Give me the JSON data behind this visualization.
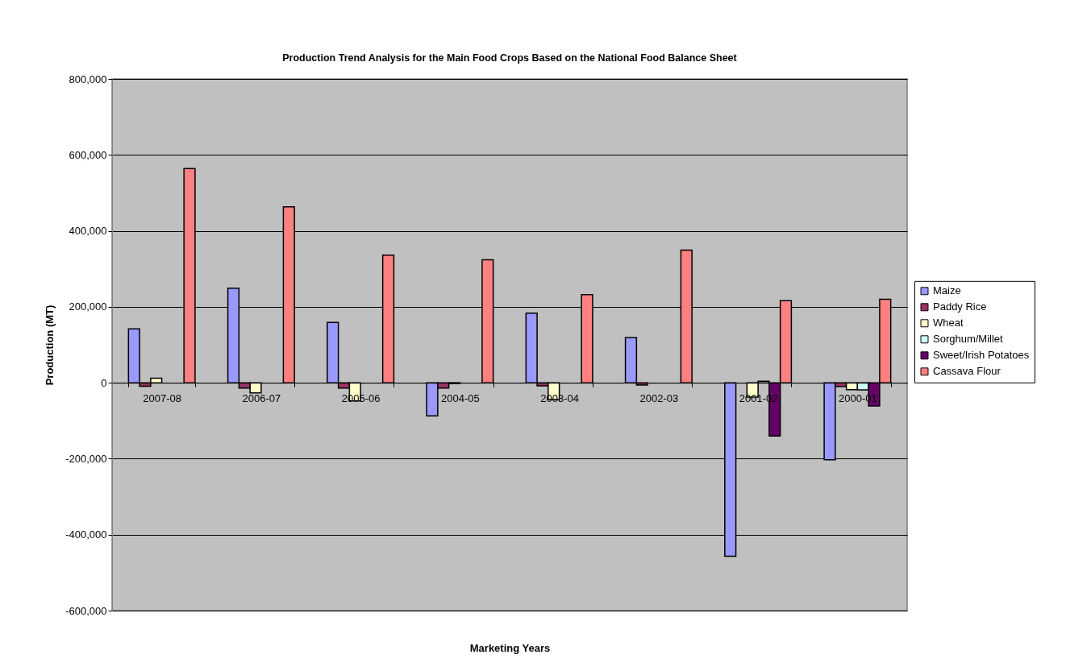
{
  "chart_data": {
    "type": "bar",
    "title": "Production Trend Analysis for the Main Food Crops Based on the National Food Balance Sheet",
    "xlabel": "Marketing Years",
    "ylabel": "Production (MT)",
    "categories": [
      "2007-08",
      "2006-07",
      "2005-06",
      "2004-05",
      "2003-04",
      "2002-03",
      "2001-02",
      "2000-01"
    ],
    "series": [
      {
        "name": "Maize",
        "color": "#9999ff",
        "values": [
          142000,
          249000,
          159000,
          -87000,
          183000,
          119000,
          -457000,
          -203000
        ]
      },
      {
        "name": "Paddy Rice",
        "color": "#993366",
        "values": [
          -9000,
          -14000,
          -14000,
          -14000,
          -8000,
          -6000,
          null,
          -10000
        ]
      },
      {
        "name": "Wheat",
        "color": "#ffffcc",
        "values": [
          12000,
          -27000,
          -48000,
          -2000,
          -44000,
          null,
          -38000,
          -18000
        ]
      },
      {
        "name": "Sorghum/Millet",
        "color": "#ccffff",
        "values": [
          null,
          null,
          null,
          null,
          null,
          null,
          4000,
          -19000
        ]
      },
      {
        "name": "Sweet/Irish Potatoes",
        "color": "#660066",
        "values": [
          null,
          null,
          null,
          null,
          null,
          null,
          -140000,
          -61000
        ]
      },
      {
        "name": "Cassava Flour",
        "color": "#ff8080",
        "values": [
          564000,
          463000,
          336000,
          324000,
          232000,
          349000,
          216000,
          220000
        ]
      }
    ],
    "ylim": [
      -600000,
      800000
    ],
    "yticks": [
      {
        "value": -600000,
        "label": "-600,000"
      },
      {
        "value": -400000,
        "label": "-400,000"
      },
      {
        "value": -200000,
        "label": "-200,000"
      },
      0,
      {
        "value": 200000,
        "label": "200,000"
      },
      {
        "value": 400000,
        "label": "400,000"
      },
      {
        "value": 600000,
        "label": "600,000"
      },
      {
        "value": 800000,
        "label": "800,000"
      }
    ],
    "grid": "y",
    "legend": "right"
  }
}
